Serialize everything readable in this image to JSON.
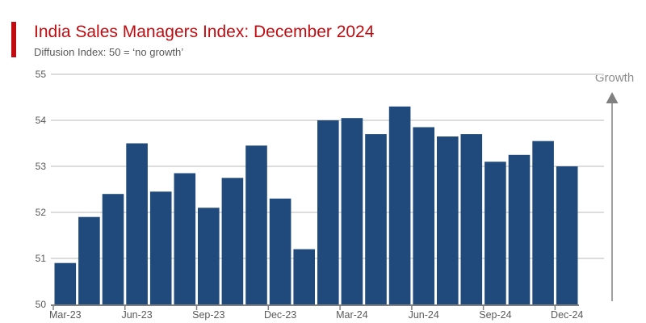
{
  "colors": {
    "accent_red": "#c00c11",
    "title_red": "#c00c11",
    "bar_blue": "#1f4a7b",
    "gridline_gray": "#dcdcdc",
    "axis_line_gray": "#808080",
    "axis_text_gray": "#595959",
    "subtitle_gray": "#595959",
    "arrow_gray": "#808080",
    "growth_label_gray": "#8c8c8c",
    "background": "#ffffff"
  },
  "chart_data": {
    "type": "bar",
    "title": "India Sales Managers Index: December 2024",
    "subtitle": "Diffusion Index: 50 = ‘no growth’",
    "categories": [
      "Mar-23",
      "Apr-23",
      "May-23",
      "Jun-23",
      "Jul-23",
      "Aug-23",
      "Sep-23",
      "Oct-23",
      "Nov-23",
      "Dec-23",
      "Jan-24",
      "Feb-24",
      "Mar-24",
      "Apr-24",
      "May-24",
      "Jun-24",
      "Jul-24",
      "Aug-24",
      "Sep-24",
      "Oct-24",
      "Nov-24",
      "Dec-24"
    ],
    "values": [
      50.9,
      51.9,
      52.4,
      53.5,
      52.45,
      52.85,
      52.1,
      52.75,
      53.45,
      52.3,
      51.2,
      54.0,
      54.05,
      53.7,
      54.3,
      53.85,
      53.65,
      53.7,
      53.1,
      53.25,
      53.55,
      53.0
    ],
    "xlabel": "",
    "ylabel": "",
    "ylim": [
      50,
      55
    ],
    "y_ticks": [
      50,
      51,
      52,
      53,
      54,
      55
    ],
    "x_tick_indices": [
      0,
      3,
      6,
      9,
      12,
      15,
      18,
      21
    ],
    "grid": "horizontal",
    "legend": "none",
    "annotation": {
      "label": "Growth",
      "position": "right",
      "direction": "up"
    }
  }
}
